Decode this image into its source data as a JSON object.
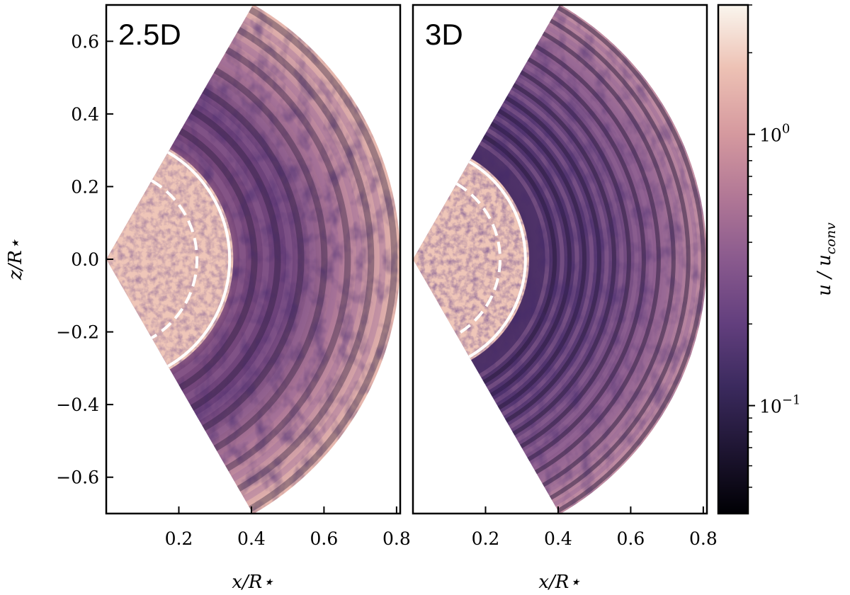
{
  "chart_data": [
    {
      "type": "heatmap",
      "panel_label": "2.5D",
      "xlabel": "x/R⋆",
      "ylabel": "z/R⋆",
      "xlim": [
        0.0,
        0.81
      ],
      "ylim": [
        -0.7,
        0.7
      ],
      "x_ticks": [
        "0.2",
        "0.4",
        "0.6",
        "0.8"
      ],
      "y_ticks": [
        "0.6",
        "0.4",
        "0.2",
        "0.0",
        "−0.2",
        "−0.4",
        "−0.6"
      ],
      "wedge": {
        "r_outer": 0.81,
        "half_angle_deg": 60
      },
      "boundaries": [
        {
          "style": "solid",
          "color": "#ffffff",
          "r": 0.34
        },
        {
          "style": "dashed",
          "color": "#ffffff",
          "r": 0.25
        }
      ],
      "features": {
        "inner_region": "bright turbulent core (u/u_conv ~ 1–3)",
        "outer_region": "wave pattern (u/u_conv ~ 0.05–1)"
      }
    },
    {
      "type": "heatmap",
      "panel_label": "3D",
      "xlabel": "x/R⋆",
      "ylabel": "",
      "xlim": [
        0.0,
        0.81
      ],
      "ylim": [
        -0.7,
        0.7
      ],
      "x_ticks": [
        "0.2",
        "0.4",
        "0.6",
        "0.8"
      ],
      "y_ticks": [],
      "wedge": {
        "r_outer": 0.81,
        "half_angle_deg": 60
      },
      "boundaries": [
        {
          "style": "solid",
          "color": "#ffffff",
          "r": 0.31
        },
        {
          "style": "dashed",
          "color": "#ffffff",
          "r": 0.24
        }
      ],
      "features": {
        "inner_region": "bright turbulent core (u/u_conv ~ 1–3)",
        "outer_region": "wave pattern (u/u_conv ~ 0.05–1)"
      }
    }
  ],
  "colorbar": {
    "label": "u / u_conv",
    "label_main": "u / u",
    "label_sub": "conv",
    "scale": "log",
    "range": [
      0.04,
      3.0
    ],
    "ticks": [
      {
        "value": 1,
        "base": "10",
        "exp": "0"
      },
      {
        "value": 0.1,
        "base": "10",
        "exp": "−1"
      }
    ],
    "colormap": [
      "#000004",
      "#1e1532",
      "#3b2a5e",
      "#633f7e",
      "#8a5a8e",
      "#b27896",
      "#d69a9f",
      "#edc1b4",
      "#faf6ee"
    ]
  }
}
